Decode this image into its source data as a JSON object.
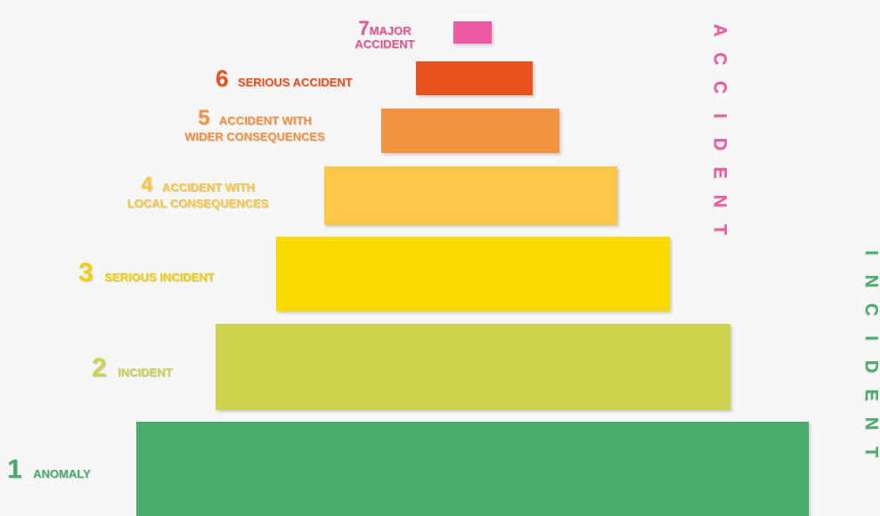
{
  "levels": [
    {
      "number": "1",
      "line1": "ANOMALY",
      "line2": "",
      "color": "#4aac6a",
      "label_color": "#4aac6a"
    },
    {
      "number": "2",
      "line1": "INCIDENT",
      "line2": "",
      "color": "#cbd34f",
      "label_color": "#cbd34f"
    },
    {
      "number": "3",
      "line1": "SERIOUS INCIDENT",
      "line2": "",
      "color": "#fbd902",
      "label_color": "#f3d000"
    },
    {
      "number": "4",
      "line1": "ACCIDENT WITH",
      "line2": "LOCAL CONSEQUENCES",
      "color": "#fdc84a",
      "label_color": "#fcc93f"
    },
    {
      "number": "5",
      "line1": "ACCIDENT WITH",
      "line2": "WIDER CONSEQUENCES",
      "color": "#f29342",
      "label_color": "#f29342"
    },
    {
      "number": "6",
      "line1": "SERIOUS ACCIDENT",
      "line2": "",
      "color": "#e7521f",
      "label_color": "#e7521f"
    },
    {
      "number": "7",
      "line1": "MAJOR",
      "line2": "ACCIDENT",
      "color": "#ec5aa2",
      "label_color": "#e2579b"
    }
  ],
  "side_labels": {
    "accident": {
      "text": "ACCIDENT",
      "color": "#ec5aa2"
    },
    "incident": {
      "text": "INCIDENT",
      "color": "#4aac6a"
    }
  }
}
